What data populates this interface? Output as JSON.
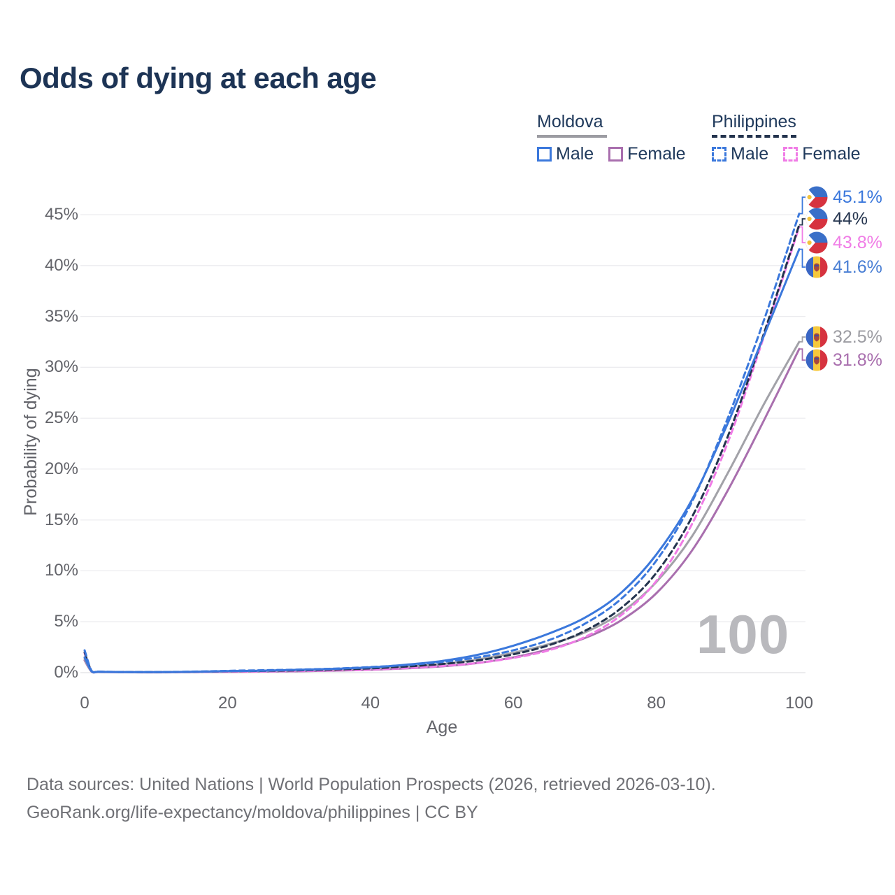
{
  "title": "Odds of dying at each age",
  "legend": {
    "moldova": {
      "label": "Moldova",
      "male_label": "Male",
      "female_label": "Female"
    },
    "philippines": {
      "label": "Philippines",
      "male_label": "Male",
      "female_label": "Female"
    }
  },
  "watermark_age": "100",
  "axes": {
    "xlabel": "Age",
    "ylabel": "Probability of dying"
  },
  "footer": {
    "line1": "Data sources: United Nations | World Population Prospects (2026, retrieved 2026-03-10).",
    "line2": "GeoRank.org/life-expectancy/moldova/philippines | CC BY"
  },
  "colors": {
    "male_blue": "#3b78dc",
    "philippines_female_pink": "#f07ce6",
    "moldova_female_purple": "#a96fae",
    "moldova_total_gray": "#a2a2a8",
    "philippines_total_navy": "#24344e",
    "heading_navy": "#1d3455",
    "tick_gray": "#63646a",
    "grid_gray": "#ececef"
  },
  "chart_data": {
    "type": "line",
    "title": "Odds of dying at each age",
    "xlabel": "Age",
    "ylabel": "Probability of dying",
    "xlim": [
      0,
      100
    ],
    "ylim": [
      0,
      47
    ],
    "grid": true,
    "x_ticks": [
      0,
      20,
      40,
      60,
      80,
      100
    ],
    "y_ticks": [
      "0%",
      "5%",
      "10%",
      "15%",
      "20%",
      "25%",
      "30%",
      "35%",
      "40%",
      "45%"
    ],
    "x_ages": [
      0,
      1,
      2,
      5,
      10,
      15,
      20,
      25,
      30,
      35,
      40,
      45,
      50,
      55,
      60,
      65,
      70,
      75,
      80,
      85,
      90,
      95,
      100
    ],
    "series": [
      {
        "name": "Philippines Male",
        "country": "philippines",
        "sex": "male",
        "flag": "ph",
        "color": "#3b78dc",
        "dash": true,
        "end_label": "45.1%",
        "label_color": "#3b78dc",
        "values": [
          2.2,
          0.16,
          0.1,
          0.07,
          0.06,
          0.1,
          0.18,
          0.24,
          0.3,
          0.4,
          0.55,
          0.75,
          1.05,
          1.5,
          2.2,
          3.2,
          4.8,
          7.2,
          11.0,
          16.8,
          25.0,
          34.5,
          45.1
        ]
      },
      {
        "name": "Philippines Both sexes",
        "country": "philippines",
        "sex": "both",
        "flag": "ph",
        "color": "#24344e",
        "dash": true,
        "end_label": "44%",
        "label_color": "#24344e",
        "values": [
          2.0,
          0.14,
          0.09,
          0.06,
          0.05,
          0.08,
          0.14,
          0.18,
          0.23,
          0.31,
          0.42,
          0.6,
          0.85,
          1.2,
          1.8,
          2.7,
          4.1,
          6.3,
          9.8,
          15.3,
          23.2,
          33.2,
          44.0
        ]
      },
      {
        "name": "Philippines Female",
        "country": "philippines",
        "sex": "female",
        "flag": "ph",
        "color": "#f07ce6",
        "dash": true,
        "end_label": "43.8%",
        "label_color": "#f07ce6",
        "values": [
          1.9,
          0.12,
          0.08,
          0.05,
          0.04,
          0.06,
          0.09,
          0.12,
          0.16,
          0.22,
          0.3,
          0.45,
          0.65,
          0.95,
          1.45,
          2.2,
          3.5,
          5.6,
          9.0,
          14.6,
          22.6,
          32.9,
          43.8
        ]
      },
      {
        "name": "Moldova Male",
        "country": "moldova",
        "sex": "male",
        "flag": "md",
        "color": "#3b78dc",
        "dash": false,
        "end_label": "41.6%",
        "label_color": "#4a7fd4",
        "values": [
          1.5,
          0.12,
          0.08,
          0.05,
          0.05,
          0.08,
          0.15,
          0.2,
          0.28,
          0.38,
          0.52,
          0.78,
          1.15,
          1.75,
          2.65,
          3.85,
          5.4,
          7.8,
          11.6,
          17.0,
          24.5,
          33.0,
          41.6
        ]
      },
      {
        "name": "Moldova Both sexes",
        "country": "moldova",
        "sex": "both",
        "flag": "md",
        "color": "#a2a2a8",
        "dash": false,
        "end_label": "32.5%",
        "label_color": "#9c9ca2",
        "values": [
          1.35,
          0.1,
          0.07,
          0.04,
          0.04,
          0.06,
          0.1,
          0.14,
          0.2,
          0.28,
          0.39,
          0.57,
          0.83,
          1.3,
          1.95,
          2.8,
          3.95,
          5.85,
          8.9,
          13.4,
          19.6,
          26.3,
          32.5
        ]
      },
      {
        "name": "Moldova Female",
        "country": "moldova",
        "sex": "female",
        "flag": "md",
        "color": "#a96fae",
        "dash": false,
        "end_label": "31.8%",
        "label_color": "#a96fae",
        "values": [
          1.2,
          0.09,
          0.06,
          0.04,
          0.03,
          0.05,
          0.07,
          0.1,
          0.14,
          0.2,
          0.28,
          0.42,
          0.62,
          0.95,
          1.5,
          2.3,
          3.4,
          5.1,
          7.8,
          12.0,
          17.9,
          24.7,
          31.8
        ]
      }
    ],
    "legend_position": "top-right"
  }
}
